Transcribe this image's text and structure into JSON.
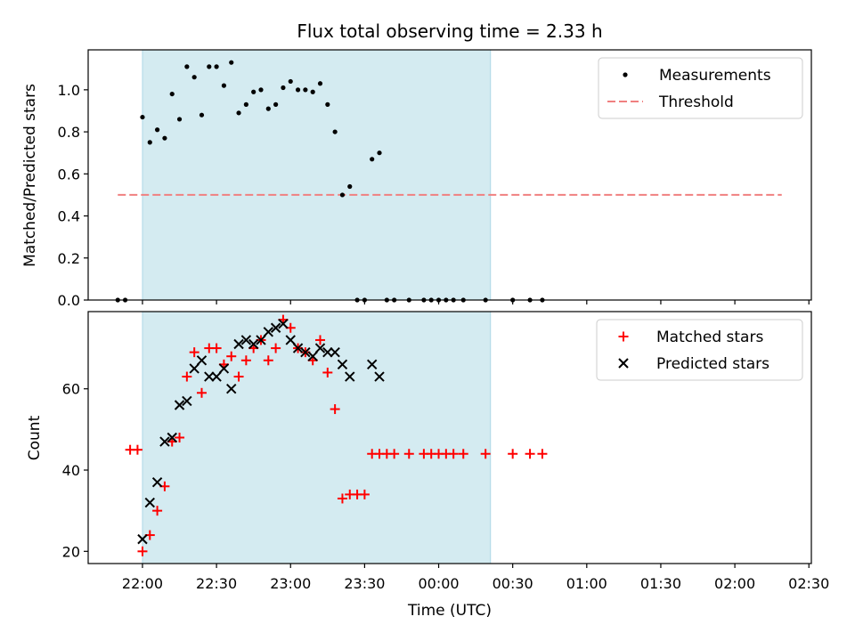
{
  "chart_data": [
    {
      "type": "scatter",
      "title": "Flux total observing time = 2.33 h",
      "ylabel": "Matched/Predicted stars",
      "ylim": [
        0,
        1.19
      ],
      "yticks": [
        0.0,
        0.2,
        0.4,
        0.6,
        0.8,
        1.0
      ],
      "ytick_labels": [
        "0.0",
        "0.2",
        "0.4",
        "0.6",
        "0.8",
        "1.0"
      ],
      "legend": "top-right",
      "threshold": {
        "name": "Threshold",
        "value": 0.5,
        "x_start": "21:50",
        "x_end": "02:19",
        "color": "#f08080"
      },
      "series": [
        {
          "name": "Measurements",
          "color": "#000000",
          "marker": "dot",
          "points": [
            [
              "21:50",
              0.0
            ],
            [
              "21:53",
              0.0
            ],
            [
              "22:00",
              0.87
            ],
            [
              "22:03",
              0.75
            ],
            [
              "22:06",
              0.81
            ],
            [
              "22:09",
              0.77
            ],
            [
              "22:12",
              0.98
            ],
            [
              "22:15",
              0.86
            ],
            [
              "22:18",
              1.11
            ],
            [
              "22:21",
              1.06
            ],
            [
              "22:24",
              0.88
            ],
            [
              "22:27",
              1.11
            ],
            [
              "22:30",
              1.11
            ],
            [
              "22:33",
              1.02
            ],
            [
              "22:36",
              1.13
            ],
            [
              "22:39",
              0.89
            ],
            [
              "22:42",
              0.93
            ],
            [
              "22:45",
              0.99
            ],
            [
              "22:48",
              1.0
            ],
            [
              "22:51",
              0.91
            ],
            [
              "22:54",
              0.93
            ],
            [
              "22:57",
              1.01
            ],
            [
              "23:00",
              1.04
            ],
            [
              "23:03",
              1.0
            ],
            [
              "23:06",
              1.0
            ],
            [
              "23:09",
              0.99
            ],
            [
              "23:12",
              1.03
            ],
            [
              "23:15",
              0.93
            ],
            [
              "23:18",
              0.8
            ],
            [
              "23:21",
              0.5
            ],
            [
              "23:24",
              0.54
            ],
            [
              "23:27",
              0.0
            ],
            [
              "23:30",
              0.0
            ],
            [
              "23:33",
              0.67
            ],
            [
              "23:36",
              0.7
            ],
            [
              "23:39",
              0.0
            ],
            [
              "23:42",
              0.0
            ],
            [
              "23:48",
              0.0
            ],
            [
              "23:54",
              0.0
            ],
            [
              "23:57",
              0.0
            ],
            [
              "24:00",
              0.0
            ],
            [
              "24:03",
              0.0
            ],
            [
              "24:06",
              0.0
            ],
            [
              "24:10",
              0.0
            ],
            [
              "24:19",
              0.0
            ],
            [
              "24:30",
              0.0
            ],
            [
              "24:37",
              0.0
            ],
            [
              "24:42",
              0.0
            ]
          ]
        }
      ]
    },
    {
      "type": "scatter",
      "xlabel": "Time (UTC)",
      "ylabel": "Count",
      "ylim": [
        17,
        79
      ],
      "yticks": [
        20,
        40,
        60
      ],
      "ytick_labels": [
        "20",
        "40",
        "60"
      ],
      "legend": "top-right",
      "series": [
        {
          "name": "Matched stars",
          "color": "#ff0000",
          "marker": "plus",
          "points": [
            [
              "21:55",
              45
            ],
            [
              "21:58",
              45
            ],
            [
              "22:00",
              20
            ],
            [
              "22:03",
              24
            ],
            [
              "22:06",
              30
            ],
            [
              "22:09",
              36
            ],
            [
              "22:12",
              47
            ],
            [
              "22:15",
              48
            ],
            [
              "22:18",
              63
            ],
            [
              "22:21",
              69
            ],
            [
              "22:24",
              59
            ],
            [
              "22:27",
              70
            ],
            [
              "22:30",
              70
            ],
            [
              "22:33",
              66
            ],
            [
              "22:36",
              68
            ],
            [
              "22:39",
              63
            ],
            [
              "22:42",
              67
            ],
            [
              "22:45",
              70
            ],
            [
              "22:48",
              72
            ],
            [
              "22:51",
              67
            ],
            [
              "22:54",
              70
            ],
            [
              "22:57",
              77
            ],
            [
              "23:00",
              75
            ],
            [
              "23:03",
              70
            ],
            [
              "23:06",
              69
            ],
            [
              "23:09",
              67
            ],
            [
              "23:12",
              72
            ],
            [
              "23:15",
              64
            ],
            [
              "23:18",
              55
            ],
            [
              "23:21",
              33
            ],
            [
              "23:24",
              34
            ],
            [
              "23:27",
              34
            ],
            [
              "23:30",
              34
            ],
            [
              "23:33",
              44
            ],
            [
              "23:36",
              44
            ],
            [
              "23:39",
              44
            ],
            [
              "23:42",
              44
            ],
            [
              "23:48",
              44
            ],
            [
              "23:54",
              44
            ],
            [
              "23:57",
              44
            ],
            [
              "24:00",
              44
            ],
            [
              "24:03",
              44
            ],
            [
              "24:06",
              44
            ],
            [
              "24:10",
              44
            ],
            [
              "24:19",
              44
            ],
            [
              "24:30",
              44
            ],
            [
              "24:37",
              44
            ],
            [
              "24:42",
              44
            ]
          ]
        },
        {
          "name": "Predicted stars",
          "color": "#000000",
          "marker": "x",
          "points": [
            [
              "22:00",
              23
            ],
            [
              "22:03",
              32
            ],
            [
              "22:06",
              37
            ],
            [
              "22:09",
              47
            ],
            [
              "22:12",
              48
            ],
            [
              "22:15",
              56
            ],
            [
              "22:18",
              57
            ],
            [
              "22:21",
              65
            ],
            [
              "22:24",
              67
            ],
            [
              "22:27",
              63
            ],
            [
              "22:30",
              63
            ],
            [
              "22:33",
              65
            ],
            [
              "22:36",
              60
            ],
            [
              "22:39",
              71
            ],
            [
              "22:42",
              72
            ],
            [
              "22:45",
              71
            ],
            [
              "22:48",
              72
            ],
            [
              "22:51",
              74
            ],
            [
              "22:54",
              75
            ],
            [
              "22:57",
              76
            ],
            [
              "23:00",
              72
            ],
            [
              "23:03",
              70
            ],
            [
              "23:06",
              69
            ],
            [
              "23:09",
              68
            ],
            [
              "23:12",
              70
            ],
            [
              "23:15",
              69
            ],
            [
              "23:18",
              69
            ],
            [
              "23:21",
              66
            ],
            [
              "23:24",
              63
            ],
            [
              "23:33",
              66
            ],
            [
              "23:36",
              63
            ]
          ]
        }
      ]
    }
  ],
  "x_axis": {
    "ticks": [
      "22:00",
      "22:30",
      "23:00",
      "23:30",
      "00:00",
      "00:30",
      "01:00",
      "01:30",
      "02:00",
      "02:30"
    ],
    "range": [
      "21:38",
      "02:31"
    ]
  },
  "shaded_region": {
    "start": "22:00",
    "end": "00:21",
    "color": "#d4ebf1"
  }
}
